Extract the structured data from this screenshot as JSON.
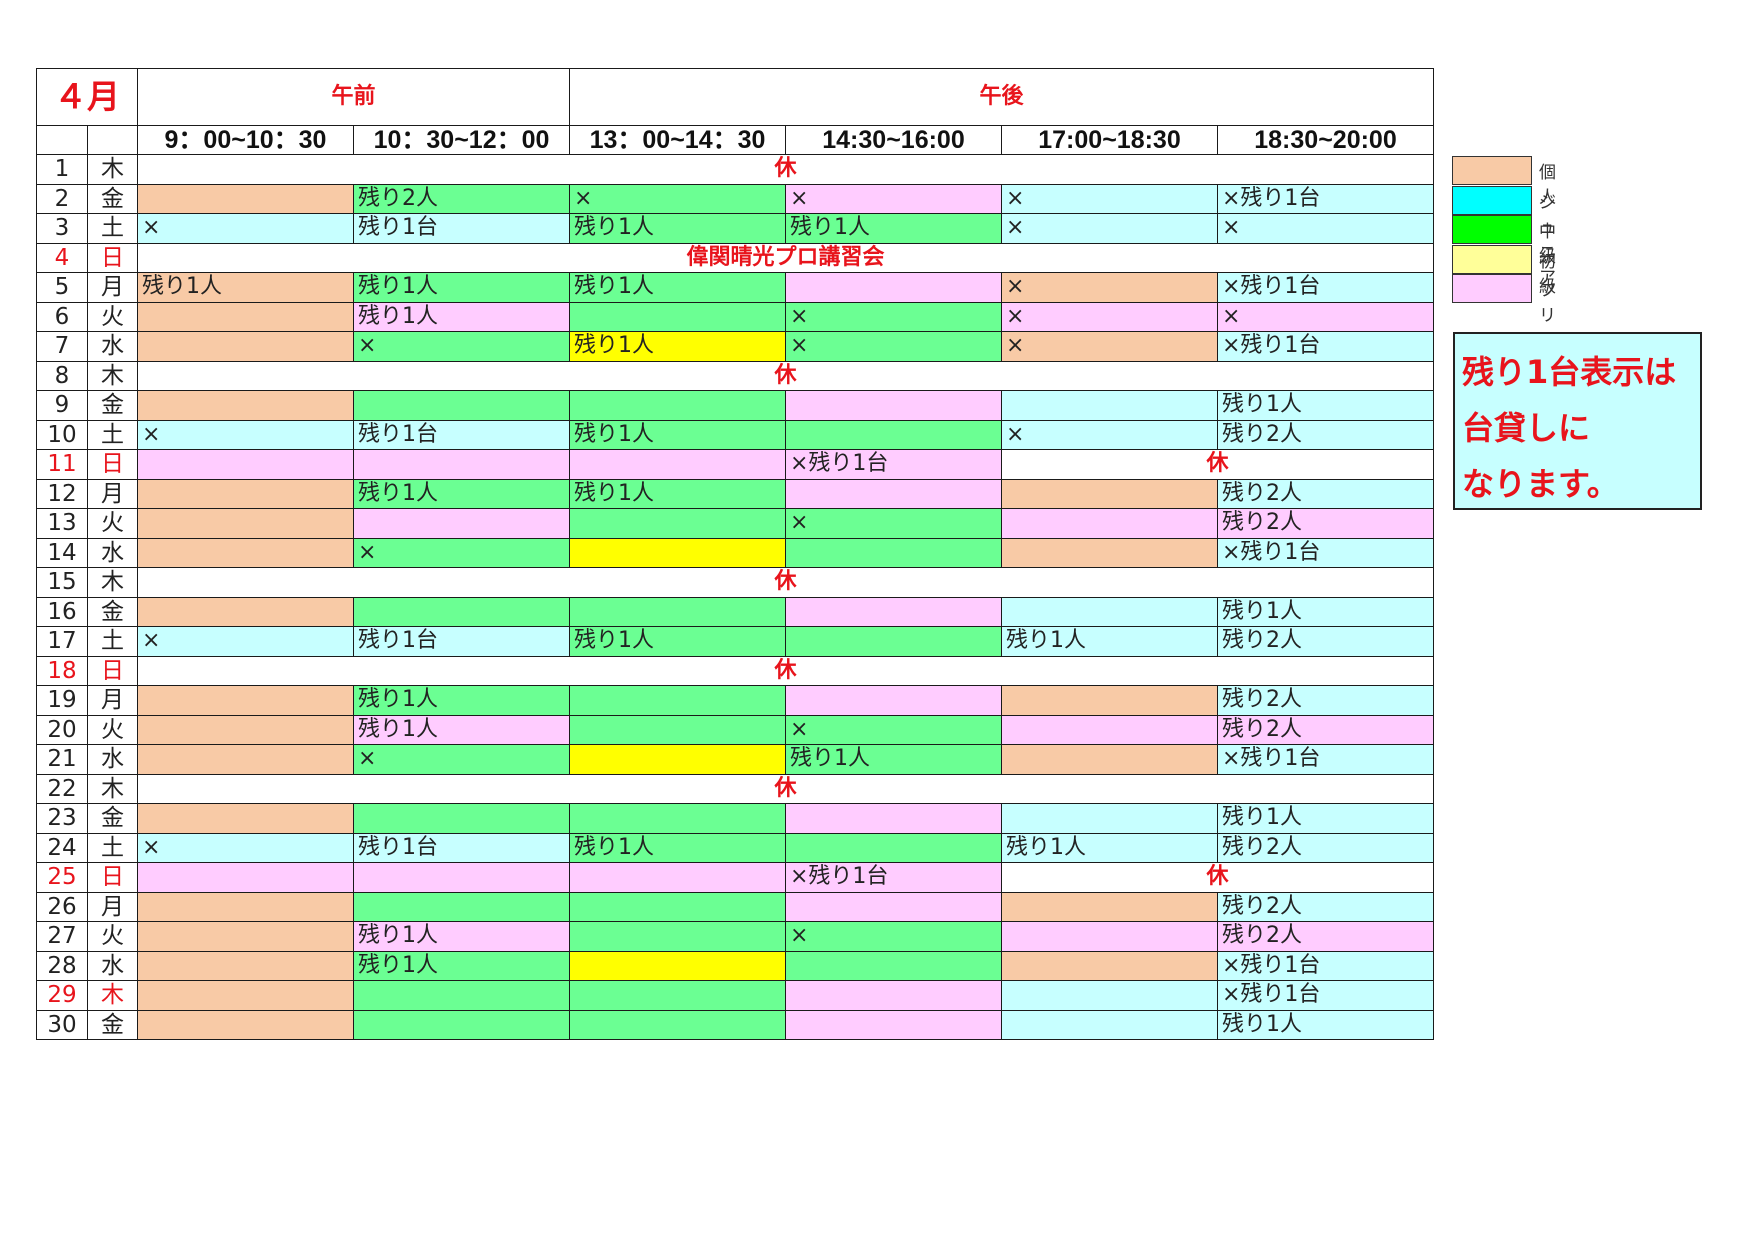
{
  "header": {
    "month": "４月",
    "am": "午前",
    "pm": "午後",
    "slots": [
      "9：00~10：30",
      "10：30~12：00",
      "13：00~14：30",
      "14:30~16:00",
      "17:00~18:30",
      "18:30~20:00"
    ]
  },
  "colors": {
    "K": "#f8caa6",
    "J": "#c7ffff",
    "C": "#6bff93",
    "S": "#ffff00",
    "F": "#ffccff",
    "W": "#ffffff",
    "red": "#e8141c"
  },
  "rows": [
    {
      "day": "1",
      "dow": "木",
      "closed": "休"
    },
    {
      "day": "2",
      "dow": "金",
      "cells": [
        [
          "K",
          ""
        ],
        [
          "C",
          "残り2人"
        ],
        [
          "C",
          "×"
        ],
        [
          "F",
          "×"
        ],
        [
          "J",
          "×"
        ],
        [
          "J",
          "×残り1台"
        ]
      ]
    },
    {
      "day": "3",
      "dow": "土",
      "cells": [
        [
          "J",
          "×"
        ],
        [
          "J",
          "残り1台"
        ],
        [
          "C",
          "残り1人"
        ],
        [
          "C",
          "残り1人"
        ],
        [
          "J",
          "×"
        ],
        [
          "J",
          "×"
        ]
      ]
    },
    {
      "day": "4",
      "dow": "日",
      "red": true,
      "closed": "偉関晴光プロ講習会"
    },
    {
      "day": "5",
      "dow": "月",
      "cells": [
        [
          "K",
          "残り1人"
        ],
        [
          "C",
          "残り1人"
        ],
        [
          "C",
          "残り1人"
        ],
        [
          "F",
          ""
        ],
        [
          "K",
          "×"
        ],
        [
          "J",
          "×残り1台"
        ]
      ]
    },
    {
      "day": "6",
      "dow": "火",
      "cells": [
        [
          "K",
          ""
        ],
        [
          "F",
          "残り1人"
        ],
        [
          "C",
          ""
        ],
        [
          "C",
          "×"
        ],
        [
          "F",
          "×"
        ],
        [
          "F",
          "×"
        ]
      ]
    },
    {
      "day": "7",
      "dow": "水",
      "cells": [
        [
          "K",
          ""
        ],
        [
          "C",
          "×"
        ],
        [
          "S",
          "残り1人"
        ],
        [
          "C",
          "×"
        ],
        [
          "K",
          "×"
        ],
        [
          "J",
          "×残り1台"
        ]
      ]
    },
    {
      "day": "8",
      "dow": "木",
      "closed": "休"
    },
    {
      "day": "9",
      "dow": "金",
      "cells": [
        [
          "K",
          ""
        ],
        [
          "C",
          ""
        ],
        [
          "C",
          ""
        ],
        [
          "F",
          ""
        ],
        [
          "J",
          ""
        ],
        [
          "J",
          "残り1人"
        ]
      ]
    },
    {
      "day": "10",
      "dow": "土",
      "cells": [
        [
          "J",
          "×"
        ],
        [
          "J",
          "残り1台"
        ],
        [
          "C",
          "残り1人"
        ],
        [
          "C",
          ""
        ],
        [
          "J",
          "×"
        ],
        [
          "J",
          "残り2人"
        ]
      ]
    },
    {
      "day": "11",
      "dow": "日",
      "red": true,
      "cells": [
        [
          "F",
          ""
        ],
        [
          "F",
          ""
        ],
        [
          "F",
          ""
        ],
        [
          "F",
          "×残り1台"
        ]
      ],
      "closedTail": "休"
    },
    {
      "day": "12",
      "dow": "月",
      "cells": [
        [
          "K",
          ""
        ],
        [
          "C",
          "残り1人"
        ],
        [
          "C",
          "残り1人"
        ],
        [
          "F",
          ""
        ],
        [
          "K",
          ""
        ],
        [
          "J",
          "残り2人"
        ]
      ]
    },
    {
      "day": "13",
      "dow": "火",
      "cells": [
        [
          "K",
          ""
        ],
        [
          "F",
          ""
        ],
        [
          "C",
          ""
        ],
        [
          "C",
          "×"
        ],
        [
          "F",
          ""
        ],
        [
          "F",
          "残り2人"
        ]
      ]
    },
    {
      "day": "14",
      "dow": "水",
      "cells": [
        [
          "K",
          ""
        ],
        [
          "C",
          "×"
        ],
        [
          "S",
          ""
        ],
        [
          "C",
          ""
        ],
        [
          "K",
          ""
        ],
        [
          "J",
          "×残り1台"
        ]
      ]
    },
    {
      "day": "15",
      "dow": "木",
      "closed": "休"
    },
    {
      "day": "16",
      "dow": "金",
      "cells": [
        [
          "K",
          ""
        ],
        [
          "C",
          ""
        ],
        [
          "C",
          ""
        ],
        [
          "F",
          ""
        ],
        [
          "J",
          ""
        ],
        [
          "J",
          "残り1人"
        ]
      ]
    },
    {
      "day": "17",
      "dow": "土",
      "cells": [
        [
          "J",
          "×"
        ],
        [
          "J",
          "残り1台"
        ],
        [
          "C",
          "残り1人"
        ],
        [
          "C",
          ""
        ],
        [
          "J",
          "残り1人"
        ],
        [
          "J",
          "残り2人"
        ]
      ]
    },
    {
      "day": "18",
      "dow": "日",
      "red": true,
      "closed": "休"
    },
    {
      "day": "19",
      "dow": "月",
      "cells": [
        [
          "K",
          ""
        ],
        [
          "C",
          "残り1人"
        ],
        [
          "C",
          ""
        ],
        [
          "F",
          ""
        ],
        [
          "K",
          ""
        ],
        [
          "J",
          "残り2人"
        ]
      ]
    },
    {
      "day": "20",
      "dow": "火",
      "cells": [
        [
          "K",
          ""
        ],
        [
          "F",
          "残り1人"
        ],
        [
          "C",
          ""
        ],
        [
          "C",
          "×"
        ],
        [
          "F",
          ""
        ],
        [
          "F",
          "残り2人"
        ]
      ]
    },
    {
      "day": "21",
      "dow": "水",
      "cells": [
        [
          "K",
          ""
        ],
        [
          "C",
          "×"
        ],
        [
          "S",
          ""
        ],
        [
          "C",
          "残り1人"
        ],
        [
          "K",
          ""
        ],
        [
          "J",
          "×残り1台"
        ]
      ]
    },
    {
      "day": "22",
      "dow": "木",
      "closed": "休"
    },
    {
      "day": "23",
      "dow": "金",
      "cells": [
        [
          "K",
          ""
        ],
        [
          "C",
          ""
        ],
        [
          "C",
          ""
        ],
        [
          "F",
          ""
        ],
        [
          "J",
          ""
        ],
        [
          "J",
          "残り1人"
        ]
      ]
    },
    {
      "day": "24",
      "dow": "土",
      "cells": [
        [
          "J",
          "×"
        ],
        [
          "J",
          "残り1台"
        ],
        [
          "C",
          "残り1人"
        ],
        [
          "C",
          ""
        ],
        [
          "J",
          "残り1人"
        ],
        [
          "J",
          "残り2人"
        ]
      ]
    },
    {
      "day": "25",
      "dow": "日",
      "red": true,
      "cells": [
        [
          "F",
          ""
        ],
        [
          "F",
          ""
        ],
        [
          "F",
          ""
        ],
        [
          "F",
          "×残り1台"
        ]
      ],
      "closedTail": "休"
    },
    {
      "day": "26",
      "dow": "月",
      "cells": [
        [
          "K",
          ""
        ],
        [
          "C",
          ""
        ],
        [
          "C",
          ""
        ],
        [
          "F",
          ""
        ],
        [
          "K",
          ""
        ],
        [
          "J",
          "残り2人"
        ]
      ]
    },
    {
      "day": "27",
      "dow": "火",
      "cells": [
        [
          "K",
          ""
        ],
        [
          "F",
          "残り1人"
        ],
        [
          "C",
          ""
        ],
        [
          "C",
          "×"
        ],
        [
          "F",
          ""
        ],
        [
          "F",
          "残り2人"
        ]
      ]
    },
    {
      "day": "28",
      "dow": "水",
      "cells": [
        [
          "K",
          ""
        ],
        [
          "C",
          "残り1人"
        ],
        [
          "S",
          ""
        ],
        [
          "C",
          ""
        ],
        [
          "K",
          ""
        ],
        [
          "J",
          "×残り1台"
        ]
      ]
    },
    {
      "day": "29",
      "dow": "木",
      "red": true,
      "cells": [
        [
          "K",
          ""
        ],
        [
          "C",
          ""
        ],
        [
          "C",
          ""
        ],
        [
          "F",
          ""
        ],
        [
          "J",
          ""
        ],
        [
          "J",
          "×残り1台"
        ]
      ]
    },
    {
      "day": "30",
      "dow": "金",
      "cells": [
        [
          "K",
          ""
        ],
        [
          "C",
          ""
        ],
        [
          "C",
          ""
        ],
        [
          "F",
          ""
        ],
        [
          "J",
          ""
        ],
        [
          "J",
          "残り1人"
        ]
      ]
    }
  ],
  "legend": [
    {
      "code": "K",
      "label": "個人"
    },
    {
      "code": "J",
      "label": "ジュニア",
      "color": "#00ffff"
    },
    {
      "code": "C",
      "label": "中級",
      "color": "#00ff00"
    },
    {
      "code": "Y",
      "label": "初級",
      "color": "#ffff99"
    },
    {
      "code": "F",
      "label": "フリー"
    }
  ],
  "note": [
    "残り1台表示は",
    "台貸しに",
    "なります。"
  ]
}
